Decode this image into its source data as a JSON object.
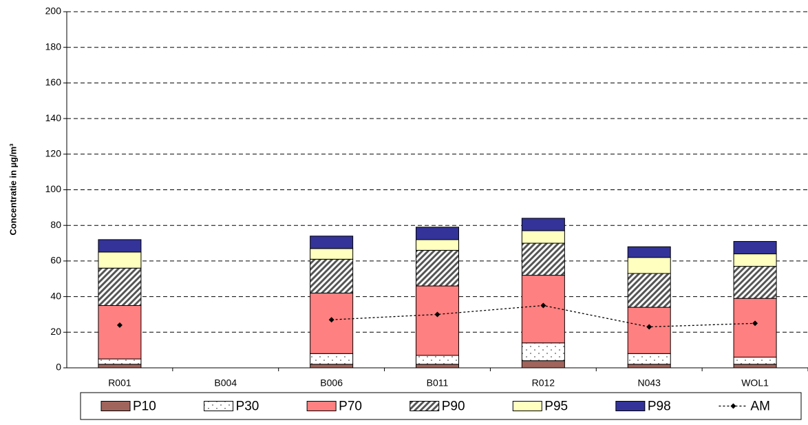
{
  "chart_data": {
    "type": "bar",
    "stacked": true,
    "ylabel": "Concentratie in µg/m³",
    "categories": [
      "R001",
      "B004",
      "B006",
      "B011",
      "R012",
      "N043",
      "WOL1"
    ],
    "series": [
      {
        "name": "P10",
        "color": "#a0645c",
        "values": [
          2,
          null,
          2,
          2,
          4,
          2,
          2
        ]
      },
      {
        "name": "P30",
        "color": "#ffffff",
        "pattern": "dots",
        "values": [
          3,
          null,
          6,
          5,
          10,
          6,
          4
        ]
      },
      {
        "name": "P70",
        "color": "#ff8080",
        "values": [
          30,
          null,
          34,
          39,
          38,
          26,
          33
        ]
      },
      {
        "name": "P90",
        "color": "#ffffff",
        "pattern": "hatch",
        "values": [
          21,
          null,
          19,
          20,
          18,
          19,
          18
        ]
      },
      {
        "name": "P95",
        "color": "#ffffc0",
        "values": [
          9,
          null,
          6,
          6,
          7,
          9,
          7
        ]
      },
      {
        "name": "P98",
        "color": "#333399",
        "values": [
          7,
          null,
          7,
          7,
          7,
          6,
          7
        ]
      },
      {
        "name": "AM",
        "type": "line",
        "color": "#000000",
        "values": [
          24,
          null,
          27,
          30,
          35,
          23,
          25
        ]
      }
    ],
    "ylim": [
      0,
      200
    ],
    "yticks": [
      0,
      20,
      40,
      60,
      80,
      100,
      120,
      140,
      160,
      180,
      200
    ],
    "grid": true,
    "legend": "bottom"
  }
}
